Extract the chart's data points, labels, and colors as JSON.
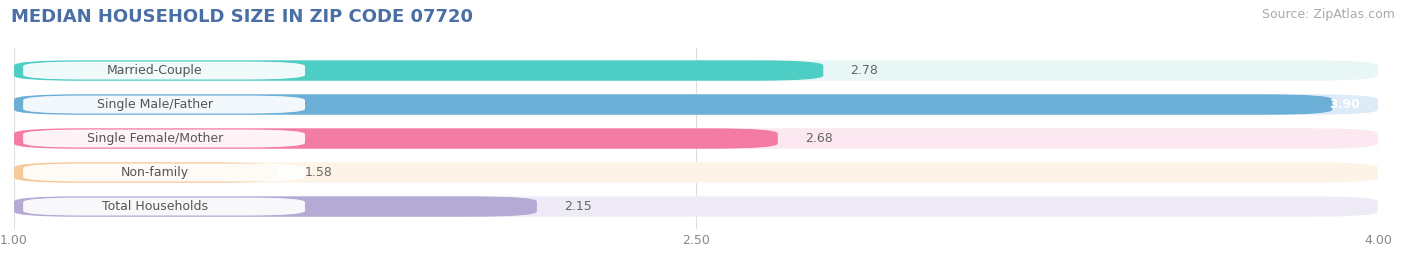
{
  "title": "MEDIAN HOUSEHOLD SIZE IN ZIP CODE 07720",
  "source": "Source: ZipAtlas.com",
  "categories": [
    "Married-Couple",
    "Single Male/Father",
    "Single Female/Mother",
    "Non-family",
    "Total Households"
  ],
  "values": [
    2.78,
    3.9,
    2.68,
    1.58,
    2.15
  ],
  "bar_colors": [
    "#4ecdc4",
    "#6baed6",
    "#f47ba3",
    "#f5c99a",
    "#b5aad6"
  ],
  "bar_bg_colors": [
    "#e8f7f6",
    "#ddeaf7",
    "#fce8f0",
    "#fdf3e7",
    "#eeebf7"
  ],
  "xlim": [
    1.0,
    4.0
  ],
  "xticks": [
    1.0,
    2.5,
    4.0
  ],
  "background_color": "#ffffff",
  "title_color": "#4a6fa5",
  "title_fontsize": 13,
  "source_fontsize": 9,
  "label_fontsize": 9,
  "value_fontsize": 9
}
